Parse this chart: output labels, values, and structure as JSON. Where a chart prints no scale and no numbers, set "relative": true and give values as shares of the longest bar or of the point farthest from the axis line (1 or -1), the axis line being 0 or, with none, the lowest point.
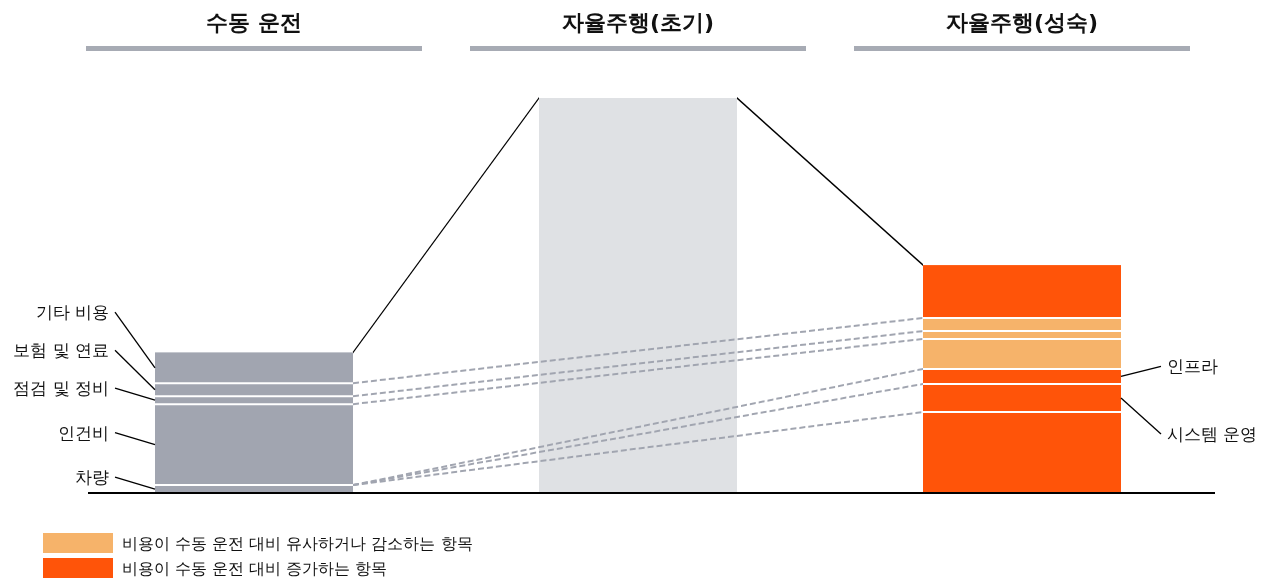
{
  "chart_data": {
    "type": "bar",
    "stacked": true,
    "relative": true,
    "legend": "bottom left",
    "categories": [
      "수동 운전",
      "자율주행(초기)",
      "자율주행(성숙)"
    ],
    "series": [
      {
        "colors": [
          "#a1a5b0",
          "#dfe1e4",
          "#ff5409"
        ],
        "values": [
          0.02,
          1.0,
          0.205
        ]
      },
      {
        "colors": [
          "#a1a5b0",
          null,
          "#ff5409"
        ],
        "values": [
          0.205,
          null,
          0.071
        ]
      },
      {
        "colors": [
          "#a1a5b0",
          null,
          "#ff5409"
        ],
        "values": [
          0.02,
          null,
          0.038
        ]
      },
      {
        "name": "비용이 수동 운전 대비 유사하거나 감소하는 항목",
        "color": "#f6b36a",
        "colors": [
          "#a1a5b0",
          null,
          "#f6b36a"
        ],
        "values": [
          0.033,
          null,
          0.076
        ]
      },
      {
        "colors": [
          "#a1a5b0",
          null,
          "#f6b36a"
        ],
        "values": [
          0.078,
          null,
          0.02
        ]
      },
      {
        "colors": [
          null,
          null,
          "#f6b36a"
        ],
        "values": [
          null,
          null,
          0.033
        ]
      },
      {
        "name": "비용이 수동 운전 대비 증가하는 항목",
        "color": "#ff5409",
        "colors": [
          null,
          null,
          "#ff5409"
        ],
        "values": [
          null,
          null,
          0.134
        ]
      }
    ],
    "annotations": [
      "기타 비용",
      "보험 및 연료",
      "점검 및 정비",
      "인건비",
      "차량",
      "인프라",
      "시스템 운영"
    ]
  }
}
